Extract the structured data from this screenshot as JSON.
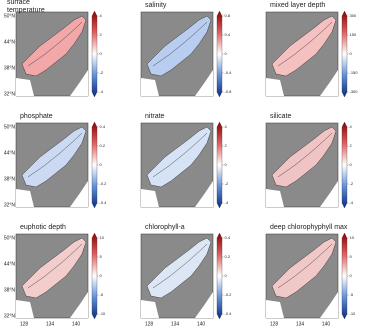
{
  "panels": [
    {
      "title": "surface temperature",
      "color": "#f2a8a8",
      "colorbar_ticks": [
        4,
        2,
        0,
        -2,
        -4
      ]
    },
    {
      "title": "salinity",
      "color": "#b9cdf0",
      "colorbar_ticks": [
        0.8,
        0.4,
        0,
        -0.4,
        -0.8
      ]
    },
    {
      "title": "mixed layer depth",
      "color": "#f4c0c0",
      "colorbar_ticks": [
        300,
        150,
        0,
        -150,
        -300
      ]
    },
    {
      "title": "phosphate",
      "color": "#cbdaf2",
      "colorbar_ticks": [
        0.4,
        0.2,
        0,
        -0.2,
        -0.4
      ]
    },
    {
      "title": "nitrate",
      "color": "#d6e2f5",
      "colorbar_ticks": [
        4,
        2,
        0,
        -2,
        -4
      ]
    },
    {
      "title": "silicate",
      "color": "#f0c4c4",
      "colorbar_ticks": [
        4,
        2,
        0,
        -2,
        -4
      ]
    },
    {
      "title": "euphotic depth",
      "color": "#f3cccc",
      "colorbar_ticks": [
        10,
        5,
        0,
        -5,
        -10
      ]
    },
    {
      "title": "chlorophyll-a",
      "color": "#dde6f5",
      "colorbar_ticks": [
        0.4,
        0.2,
        0,
        -0.2,
        -0.4
      ]
    },
    {
      "title": "deep chlorophyphyll max",
      "color": "#f1c8c8",
      "colorbar_ticks": [
        10,
        5,
        0,
        -5,
        -10
      ]
    }
  ],
  "lat_labels": [
    "50°N",
    "44°N",
    "38°N",
    "32°N"
  ],
  "lon_labels": [
    "128",
    "134",
    "140"
  ]
}
